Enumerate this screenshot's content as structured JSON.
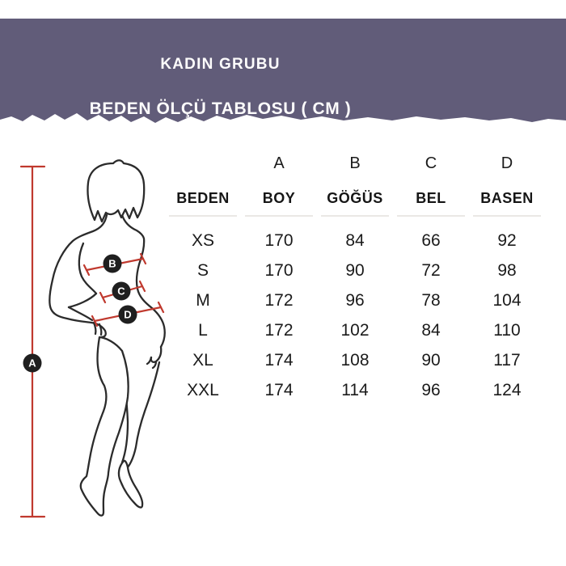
{
  "header": {
    "title": "KADIN GRUBU",
    "subtitle": "BEDEN ÖLÇÜ TABLOSU ( CM )"
  },
  "colors": {
    "header_bg": "#615c79",
    "accent_red": "#c0392e",
    "marker_bg": "#1f1f1f",
    "text": "#1b1b1b"
  },
  "figure": {
    "markers": {
      "a": "A",
      "b": "B",
      "c": "C",
      "d": "D"
    }
  },
  "chart_data": {
    "type": "table",
    "title": "KADIN GRUBU",
    "subtitle": "BEDEN ÖLÇÜ TABLOSU ( CM )",
    "letters": [
      "",
      "A",
      "B",
      "C",
      "D"
    ],
    "headers": [
      "BEDEN",
      "BOY",
      "GÖĞÜS",
      "BEL",
      "BASEN"
    ],
    "sizes": [
      "XS",
      "S",
      "M",
      "L",
      "XL",
      "XXL"
    ],
    "values": [
      [
        170,
        84,
        66,
        92
      ],
      [
        170,
        90,
        72,
        98
      ],
      [
        172,
        96,
        78,
        104
      ],
      [
        172,
        102,
        84,
        110
      ],
      [
        174,
        108,
        90,
        117
      ],
      [
        174,
        114,
        96,
        124
      ]
    ]
  }
}
